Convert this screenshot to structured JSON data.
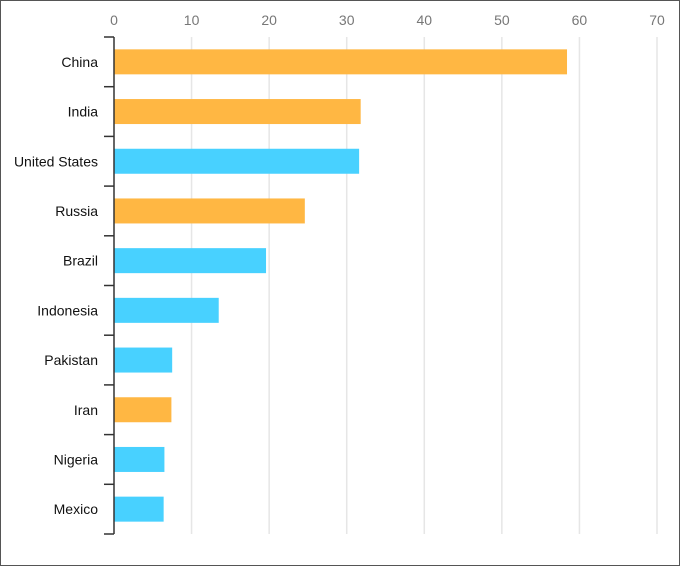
{
  "chart_data": {
    "type": "bar",
    "orientation": "horizontal",
    "categories": [
      "China",
      "India",
      "United States",
      "Russia",
      "Brazil",
      "Indonesia",
      "Pakistan",
      "Iran",
      "Nigeria",
      "Mexico"
    ],
    "values": [
      58.4,
      31.8,
      31.6,
      24.6,
      19.6,
      13.5,
      7.5,
      7.4,
      6.5,
      6.4
    ],
    "bar_colors": [
      "#FFB743",
      "#FFB743",
      "#48D1FF",
      "#FFB743",
      "#48D1FF",
      "#48D1FF",
      "#48D1FF",
      "#FFB743",
      "#48D1FF",
      "#48D1FF"
    ],
    "xlim": [
      0,
      70
    ],
    "xticks": [
      0,
      10,
      20,
      30,
      40,
      50,
      60,
      70
    ],
    "xaxis_position": "top",
    "grid": true,
    "title": "",
    "xlabel": "",
    "ylabel": ""
  }
}
